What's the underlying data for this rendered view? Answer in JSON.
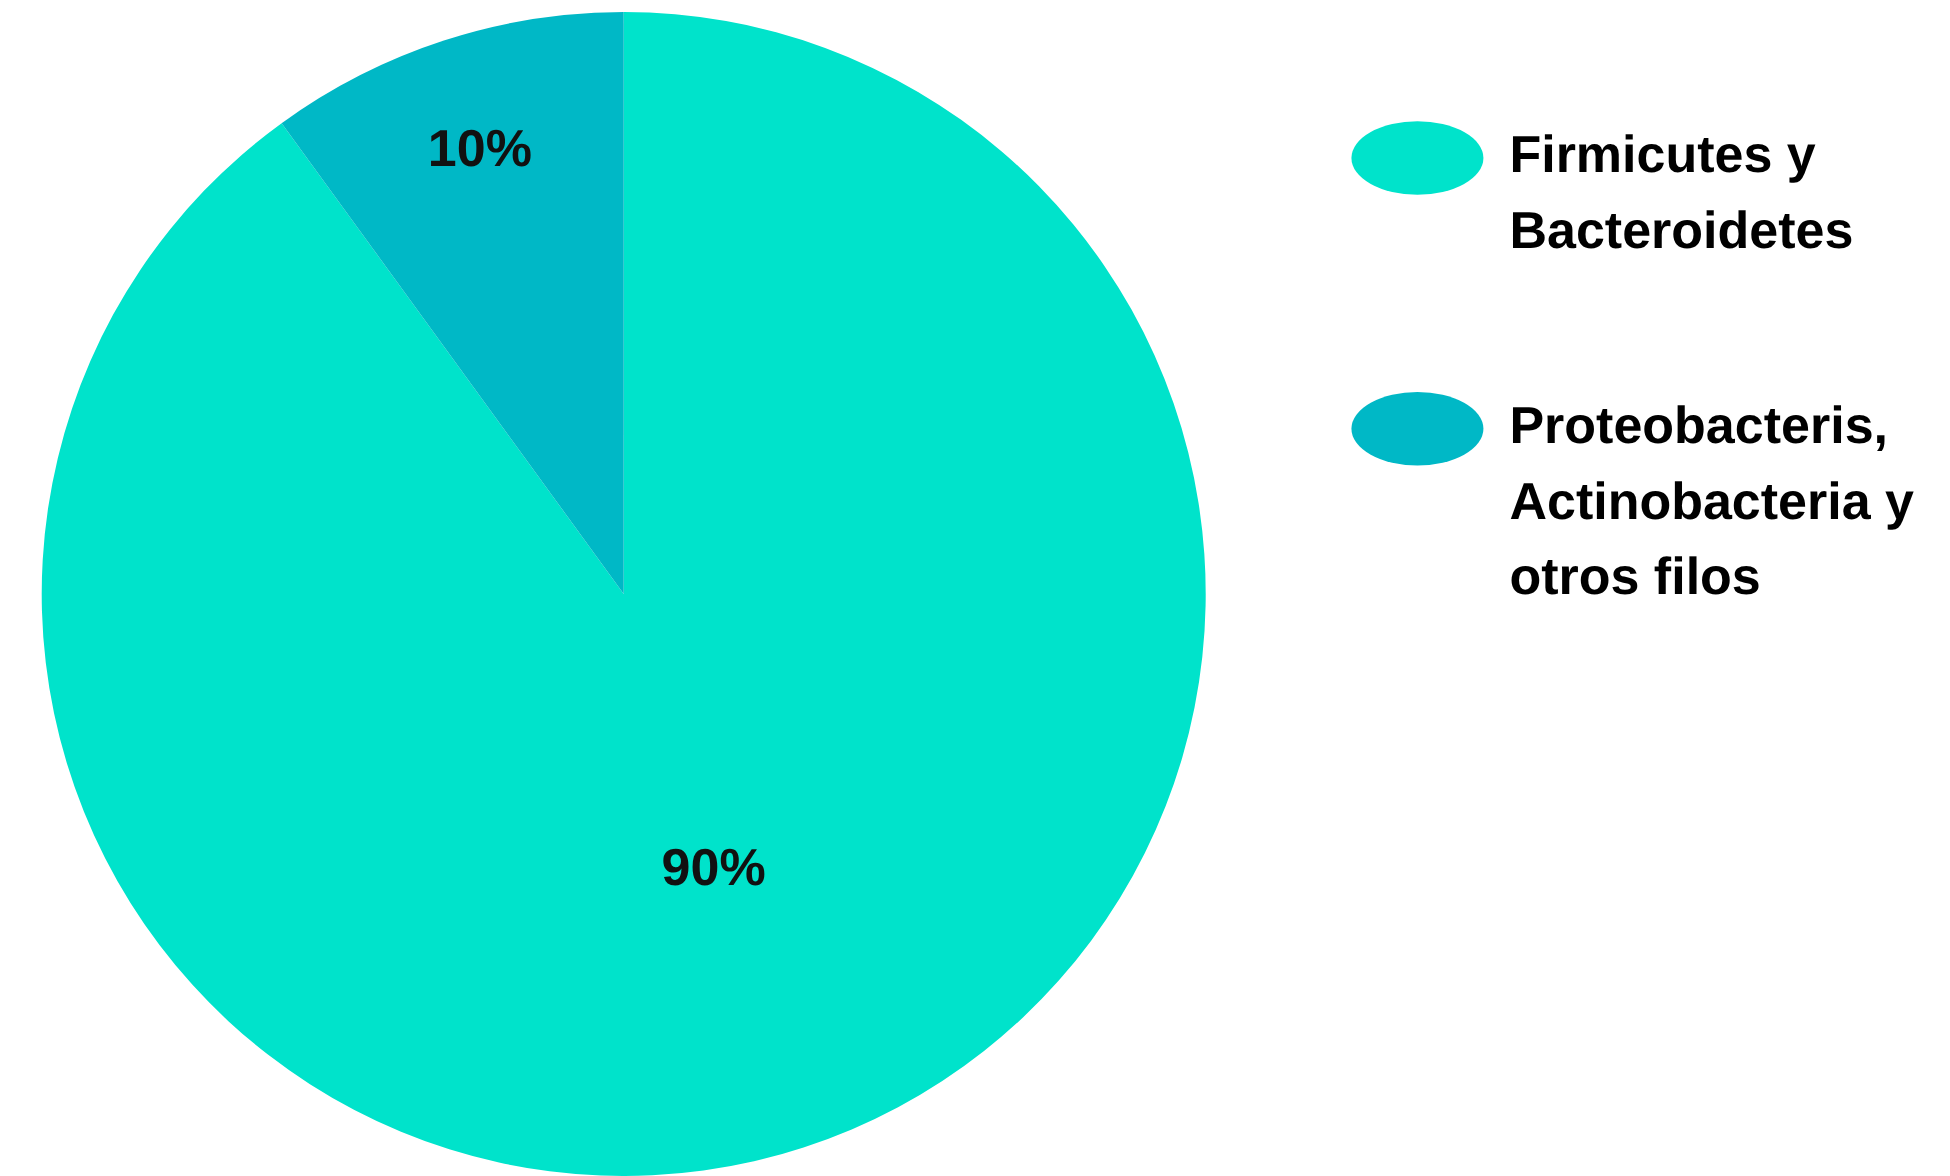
{
  "chart_data": {
    "type": "pie",
    "categories": [
      "Firmicutes y Bacteroidetes",
      "Proteobacteris, Actinobacteria y otros filos"
    ],
    "values": [
      90,
      10
    ],
    "colors": [
      "#00e3cb",
      "#00b8c6"
    ],
    "value_labels": [
      "90%",
      "10%"
    ],
    "legend": "right"
  }
}
